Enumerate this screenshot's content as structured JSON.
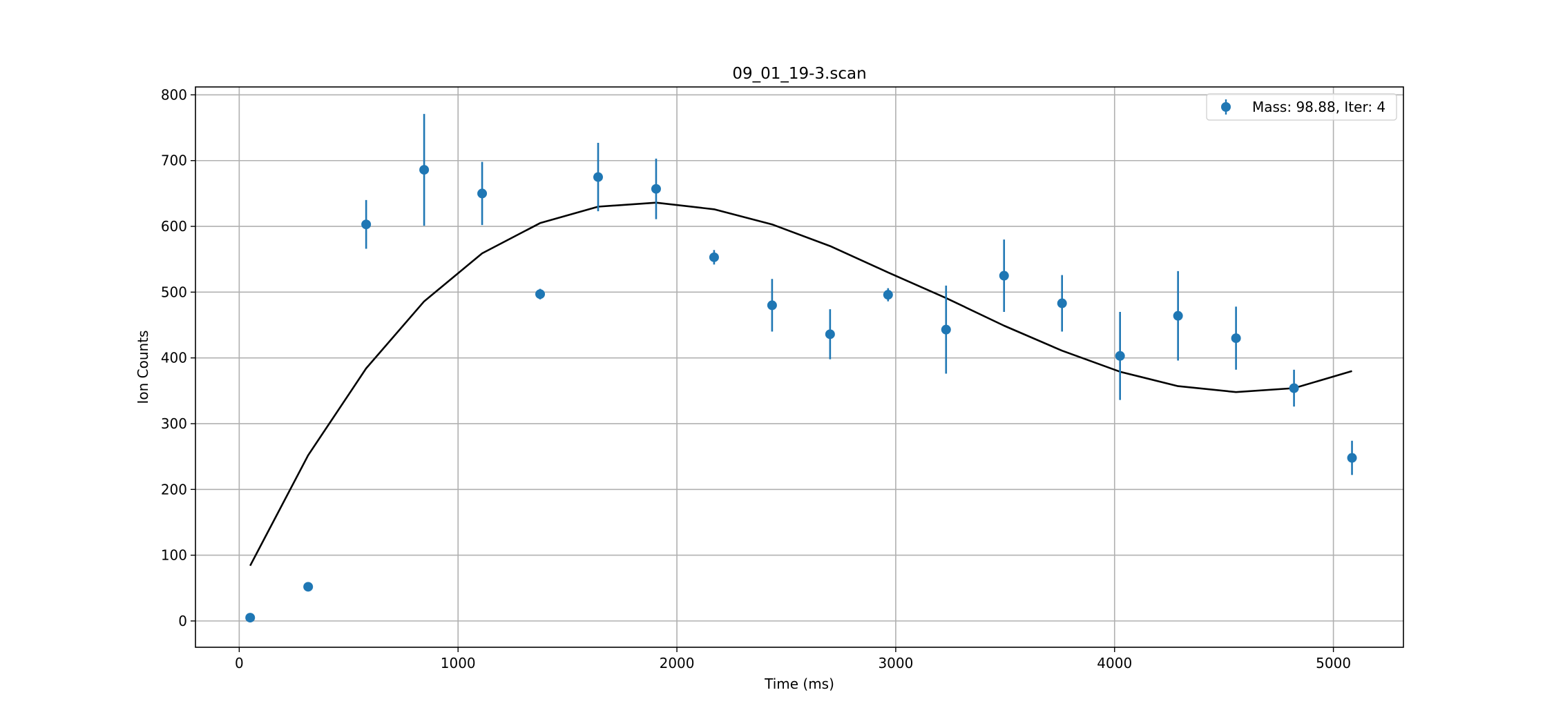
{
  "chart_data": {
    "type": "scatter",
    "title": "09_01_19-3.scan",
    "xlabel": "Time (ms)",
    "ylabel": "Ion Counts",
    "xlim": [
      -200,
      5320
    ],
    "ylim": [
      -40,
      812
    ],
    "xticks": [
      0,
      1000,
      2000,
      3000,
      4000,
      5000
    ],
    "yticks": [
      0,
      100,
      200,
      300,
      400,
      500,
      600,
      700,
      800
    ],
    "xtick_labels": [
      "0",
      "1000",
      "2000",
      "3000",
      "4000",
      "5000"
    ],
    "ytick_labels": [
      "0",
      "100",
      "200",
      "300",
      "400",
      "500",
      "600",
      "700",
      "800"
    ],
    "grid": true,
    "legend_position": "top-right",
    "colors": {
      "points": "#1f77b4",
      "fit": "#000000",
      "grid": "#b0b0b0"
    },
    "series": [
      {
        "name": "Mass: 98.88, Iter: 4",
        "kind": "errorbar",
        "x": [
          50,
          315,
          580,
          845,
          1110,
          1375,
          1640,
          1905,
          2170,
          2435,
          2700,
          2965,
          3230,
          3495,
          3760,
          4025,
          4290,
          4555,
          4820,
          5085
        ],
        "y": [
          5,
          52,
          603,
          686,
          650,
          497,
          675,
          657,
          553,
          480,
          436,
          496,
          443,
          525,
          483,
          403,
          464,
          430,
          354,
          248
        ],
        "yerr": [
          3,
          5,
          37,
          85,
          48,
          8,
          52,
          46,
          11,
          40,
          38,
          10,
          67,
          55,
          43,
          67,
          68,
          48,
          28,
          26
        ]
      },
      {
        "kind": "line",
        "x": [
          50,
          315,
          580,
          845,
          1110,
          1375,
          1640,
          1905,
          2170,
          2435,
          2700,
          2965,
          3230,
          3495,
          3760,
          4025,
          4290,
          4555,
          4820,
          5085
        ],
        "y": [
          84,
          252,
          384,
          486,
          559,
          605,
          630,
          636,
          626,
          603,
          570,
          530,
          491,
          449,
          411,
          379,
          357,
          348,
          354,
          380
        ]
      }
    ]
  }
}
